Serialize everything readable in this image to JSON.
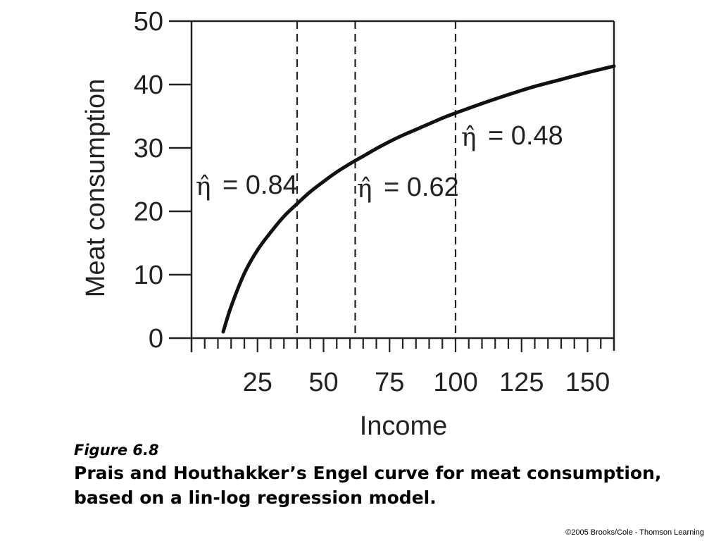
{
  "chart_data": {
    "type": "line",
    "title": "",
    "xlabel": "Income",
    "ylabel": "Meat consumption",
    "xlim": [
      0,
      160
    ],
    "ylim": [
      0,
      50
    ],
    "x_ticks": [
      25,
      50,
      75,
      100,
      125,
      150
    ],
    "y_ticks": [
      0,
      10,
      20,
      30,
      40,
      50
    ],
    "x_minor_tick_step": 5,
    "grid": false,
    "series": [
      {
        "x": [
          12,
          15,
          20,
          25,
          30,
          35,
          40,
          45,
          50,
          55,
          60,
          65,
          70,
          75,
          80,
          85,
          90,
          95,
          100,
          110,
          120,
          130,
          140,
          150,
          160
        ],
        "y": [
          1,
          5,
          10.2,
          13.9,
          16.7,
          19.2,
          21.2,
          23.1,
          24.7,
          26.2,
          27.5,
          28.7,
          29.9,
          31.0,
          32.0,
          32.9,
          33.8,
          34.7,
          35.5,
          37.0,
          38.4,
          39.7,
          40.8,
          41.9,
          42.9
        ]
      }
    ],
    "reference_lines": [
      {
        "axis": "x",
        "value": 40,
        "style": "dashed"
      },
      {
        "axis": "x",
        "value": 62,
        "style": "dashed"
      },
      {
        "axis": "x",
        "value": 100,
        "style": "dashed"
      }
    ],
    "annotations": [
      {
        "symbol": "η̂",
        "text": "= 0.84",
        "near_x": 40
      },
      {
        "symbol": "η̂",
        "text": "= 0.62",
        "near_x": 62
      },
      {
        "symbol": "η̂",
        "text": "= 0.48",
        "near_x": 100
      }
    ]
  },
  "caption": {
    "figure_label": "Figure 6.8",
    "title": "Prais and Houthakker’s Engel curve for meat consumption, based on a lin-log regression model."
  },
  "copyright": "©2005 Brooks/Cole - Thomson Learning"
}
